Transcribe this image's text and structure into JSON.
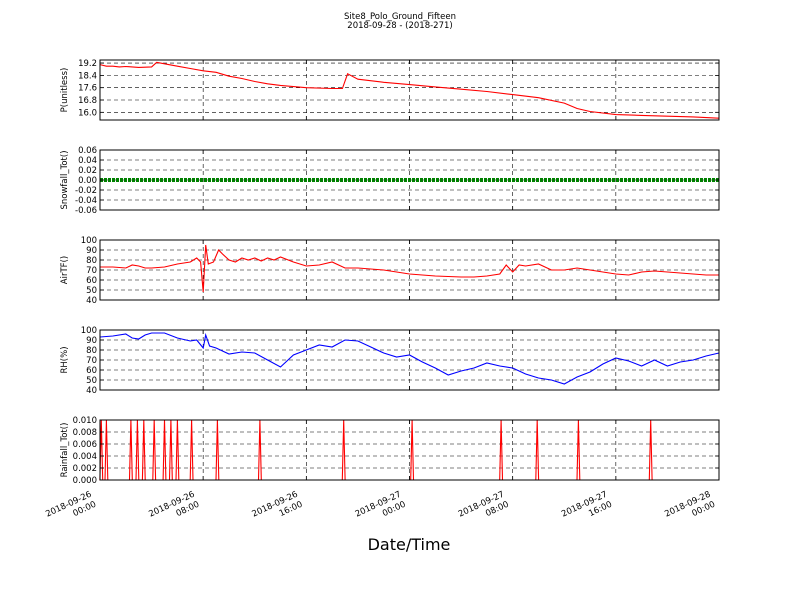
{
  "figure": {
    "title": "Site8_Polo_Ground_Fifteen",
    "subtitle": "2018-09-28 - (2018-271)",
    "xlabel": "Date/Time"
  },
  "chart_data": [
    {
      "type": "line",
      "ylabel": "P(unitless)",
      "ylim": [
        15.5,
        19.4
      ],
      "yticks": [
        "19.2",
        "18.4",
        "17.6",
        "16.8",
        "16.0"
      ],
      "ytick_values": [
        19.2,
        18.4,
        17.6,
        16.8,
        16.0
      ],
      "grid": true,
      "color": "#ff0000",
      "x": [
        0,
        0.5,
        1,
        1.5,
        2,
        3,
        4,
        4.4,
        5,
        6,
        7,
        8,
        9,
        10,
        11,
        12,
        13,
        14,
        16,
        18,
        18.8,
        19.2,
        20,
        22,
        24,
        26,
        28,
        30,
        32,
        34,
        36,
        37,
        38,
        40,
        42,
        44,
        46,
        48
      ],
      "y": [
        19.1,
        19.0,
        19.0,
        18.95,
        18.98,
        18.92,
        18.95,
        19.25,
        19.15,
        19.0,
        18.85,
        18.7,
        18.6,
        18.35,
        18.2,
        18.0,
        17.85,
        17.75,
        17.6,
        17.55,
        17.55,
        18.5,
        18.15,
        17.95,
        17.8,
        17.65,
        17.5,
        17.35,
        17.15,
        16.95,
        16.6,
        16.25,
        16.05,
        15.85,
        15.8,
        15.75,
        15.7,
        15.62
      ]
    },
    {
      "type": "line",
      "ylabel": "Snowfall_Tot()",
      "ylim": [
        -0.06,
        0.06
      ],
      "yticks": [
        "0.06",
        "0.04",
        "0.02",
        "0.00",
        "-0.02",
        "-0.04",
        "-0.06"
      ],
      "ytick_values": [
        0.06,
        0.04,
        0.02,
        0.0,
        -0.02,
        -0.04,
        -0.06
      ],
      "grid": true,
      "color": "#008000",
      "marker": "dot",
      "x": [
        0,
        48
      ],
      "y": [
        0,
        0
      ]
    },
    {
      "type": "line",
      "ylabel": "AirTF()",
      "ylim": [
        40,
        100
      ],
      "yticks": [
        "100",
        "90",
        "80",
        "70",
        "60",
        "50",
        "40"
      ],
      "ytick_values": [
        100,
        90,
        80,
        70,
        60,
        50,
        40
      ],
      "grid": true,
      "color": "#ff0000",
      "x": [
        0,
        1,
        2,
        2.5,
        3,
        3.5,
        4,
        5,
        6,
        7,
        7.5,
        7.8,
        8.0,
        8.2,
        8.4,
        8.8,
        9.2,
        9.5,
        10,
        10.5,
        11,
        11.5,
        12,
        12.5,
        13,
        13.5,
        14,
        15,
        16,
        17,
        18,
        19,
        20,
        22,
        24,
        26,
        28,
        29,
        30,
        31,
        31.5,
        32,
        32.5,
        33,
        34,
        35,
        36,
        37,
        38,
        39,
        40,
        41,
        42,
        43,
        44,
        45,
        46,
        47,
        48
      ],
      "y": [
        73,
        73,
        72,
        75,
        74,
        72,
        72,
        73,
        76,
        78,
        82,
        78,
        48,
        95,
        76,
        78,
        90,
        86,
        80,
        78,
        82,
        80,
        82,
        79,
        82,
        80,
        83,
        78,
        74,
        75,
        78,
        72,
        72,
        70,
        66,
        64,
        63,
        63,
        64,
        66,
        75,
        68,
        75,
        74,
        76,
        70,
        70,
        72,
        70,
        68,
        66,
        65,
        68,
        69,
        68,
        67,
        66,
        65,
        65
      ]
    },
    {
      "type": "line",
      "ylabel": "RH(%)",
      "ylim": [
        40,
        100
      ],
      "yticks": [
        "100",
        "90",
        "80",
        "70",
        "60",
        "50",
        "40"
      ],
      "ytick_values": [
        100,
        90,
        80,
        70,
        60,
        50,
        40
      ],
      "grid": true,
      "color": "#0000ff",
      "x": [
        0,
        1,
        2,
        2.5,
        3,
        3.5,
        4,
        5,
        6,
        7,
        7.5,
        8.0,
        8.2,
        8.5,
        9,
        10,
        11,
        12,
        13,
        14,
        15,
        16,
        17,
        18,
        19,
        20,
        21,
        22,
        23,
        24,
        25,
        26,
        27,
        28,
        29,
        30,
        31,
        32,
        33,
        34,
        35,
        36,
        37,
        38,
        39,
        40,
        41,
        42,
        43,
        44,
        45,
        46,
        47,
        48
      ],
      "y": [
        93,
        94,
        96,
        92,
        91,
        95,
        97,
        97,
        92,
        89,
        90,
        82,
        95,
        84,
        82,
        76,
        78,
        77,
        70,
        63,
        75,
        80,
        85,
        83,
        90,
        89,
        83,
        77,
        73,
        75,
        68,
        62,
        55,
        59,
        62,
        67,
        64,
        62,
        56,
        52,
        50,
        46,
        53,
        58,
        66,
        72,
        69,
        64,
        70,
        64,
        68,
        70,
        74,
        77
      ]
    },
    {
      "type": "line",
      "ylabel": "Rainfall_Tot()",
      "ylim": [
        0,
        0.01
      ],
      "yticks": [
        "0.010",
        "0.008",
        "0.006",
        "0.004",
        "0.002",
        "0.000"
      ],
      "ytick_values": [
        0.01,
        0.008,
        0.006,
        0.004,
        0.002,
        0.0
      ],
      "grid": true,
      "color": "#ff0000",
      "spikes": [
        0.1,
        0.5,
        2.4,
        2.9,
        3.4,
        4.2,
        5.0,
        5.5,
        6.0,
        7.1,
        9.1,
        12.4,
        18.9,
        24.2,
        31.1,
        33.9,
        37.1,
        42.7
      ]
    }
  ],
  "xaxis": {
    "range_hours": [
      0,
      48
    ],
    "ticks": [
      {
        "hour": 0,
        "line1": "2018-09-26",
        "line2": "00:00"
      },
      {
        "hour": 8,
        "line1": "2018-09-26",
        "line2": "08:00"
      },
      {
        "hour": 16,
        "line1": "2018-09-26",
        "line2": "16:00"
      },
      {
        "hour": 24,
        "line1": "2018-09-27",
        "line2": "00:00"
      },
      {
        "hour": 32,
        "line1": "2018-09-27",
        "line2": "08:00"
      },
      {
        "hour": 40,
        "line1": "2018-09-27",
        "line2": "16:00"
      },
      {
        "hour": 48,
        "line1": "2018-09-28",
        "line2": "00:00"
      }
    ]
  }
}
